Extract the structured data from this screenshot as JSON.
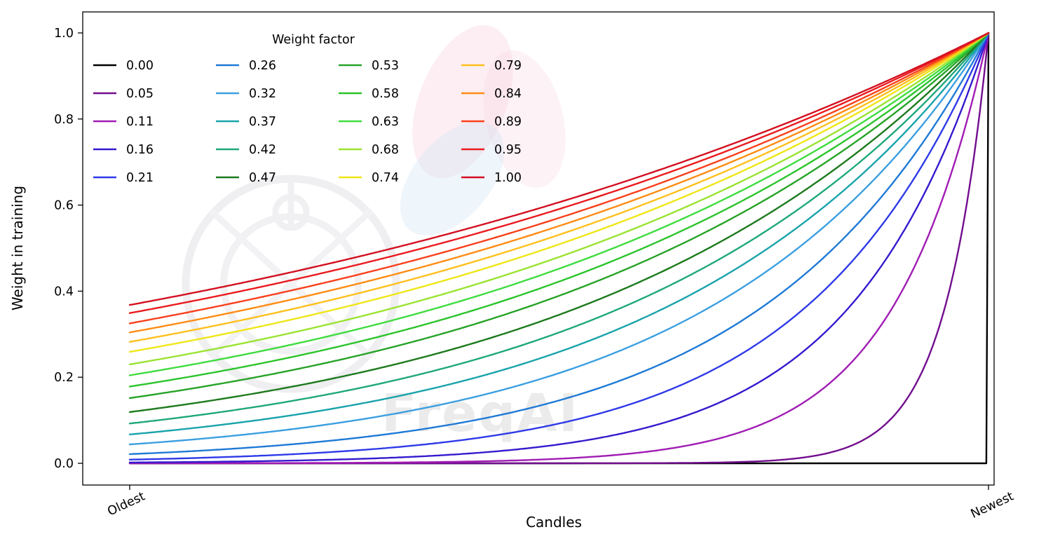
{
  "chart_data": {
    "type": "line",
    "title": "",
    "xlabel": "Candles",
    "ylabel": "Weight in training",
    "x_tick_labels": [
      "Oldest",
      "Newest"
    ],
    "y_tick_labels": [
      "0.0",
      "0.2",
      "0.4",
      "0.6",
      "0.8",
      "1.0"
    ],
    "y_ticks": [
      0.0,
      0.2,
      0.4,
      0.6,
      0.8,
      1.0
    ],
    "ylim": [
      0,
      1.05
    ],
    "grid": false,
    "legend": {
      "title": "Weight factor",
      "position": "upper left",
      "columns": 4,
      "rows": 5,
      "frame": false
    },
    "formula": "weight(x) = exp(-(1 - x) / weight_factor), x in [0,1] from Oldest to Newest; weight_factor = 0.00 gives weight 0 everywhere except 1 at Newest",
    "series": [
      {
        "name": "0.00",
        "weight_factor": 0.0,
        "color": "#000000"
      },
      {
        "name": "0.05",
        "weight_factor": 0.05,
        "color": "#720e8e"
      },
      {
        "name": "0.11",
        "weight_factor": 0.11,
        "color": "#a01cb4"
      },
      {
        "name": "0.16",
        "weight_factor": 0.16,
        "color": "#341bce"
      },
      {
        "name": "0.21",
        "weight_factor": 0.21,
        "color": "#2f3ae8"
      },
      {
        "name": "0.26",
        "weight_factor": 0.26,
        "color": "#1f7ad6"
      },
      {
        "name": "0.32",
        "weight_factor": 0.32,
        "color": "#3c9fe0"
      },
      {
        "name": "0.37",
        "weight_factor": 0.37,
        "color": "#19a3ab"
      },
      {
        "name": "0.42",
        "weight_factor": 0.42,
        "color": "#1fa87c"
      },
      {
        "name": "0.47",
        "weight_factor": 0.47,
        "color": "#1d7a1d"
      },
      {
        "name": "0.53",
        "weight_factor": 0.53,
        "color": "#27a327"
      },
      {
        "name": "0.58",
        "weight_factor": 0.58,
        "color": "#2cc42c"
      },
      {
        "name": "0.63",
        "weight_factor": 0.63,
        "color": "#3fdc3f"
      },
      {
        "name": "0.68",
        "weight_factor": 0.68,
        "color": "#9ae332"
      },
      {
        "name": "0.74",
        "weight_factor": 0.74,
        "color": "#efe618"
      },
      {
        "name": "0.79",
        "weight_factor": 0.79,
        "color": "#ffc01e"
      },
      {
        "name": "0.84",
        "weight_factor": 0.84,
        "color": "#ff8c14"
      },
      {
        "name": "0.89",
        "weight_factor": 0.89,
        "color": "#f8401c"
      },
      {
        "name": "0.95",
        "weight_factor": 0.95,
        "color": "#ea1b1f"
      },
      {
        "name": "1.00",
        "weight_factor": 1.0,
        "color": "#d31021"
      }
    ],
    "watermark": "FreqAI"
  }
}
